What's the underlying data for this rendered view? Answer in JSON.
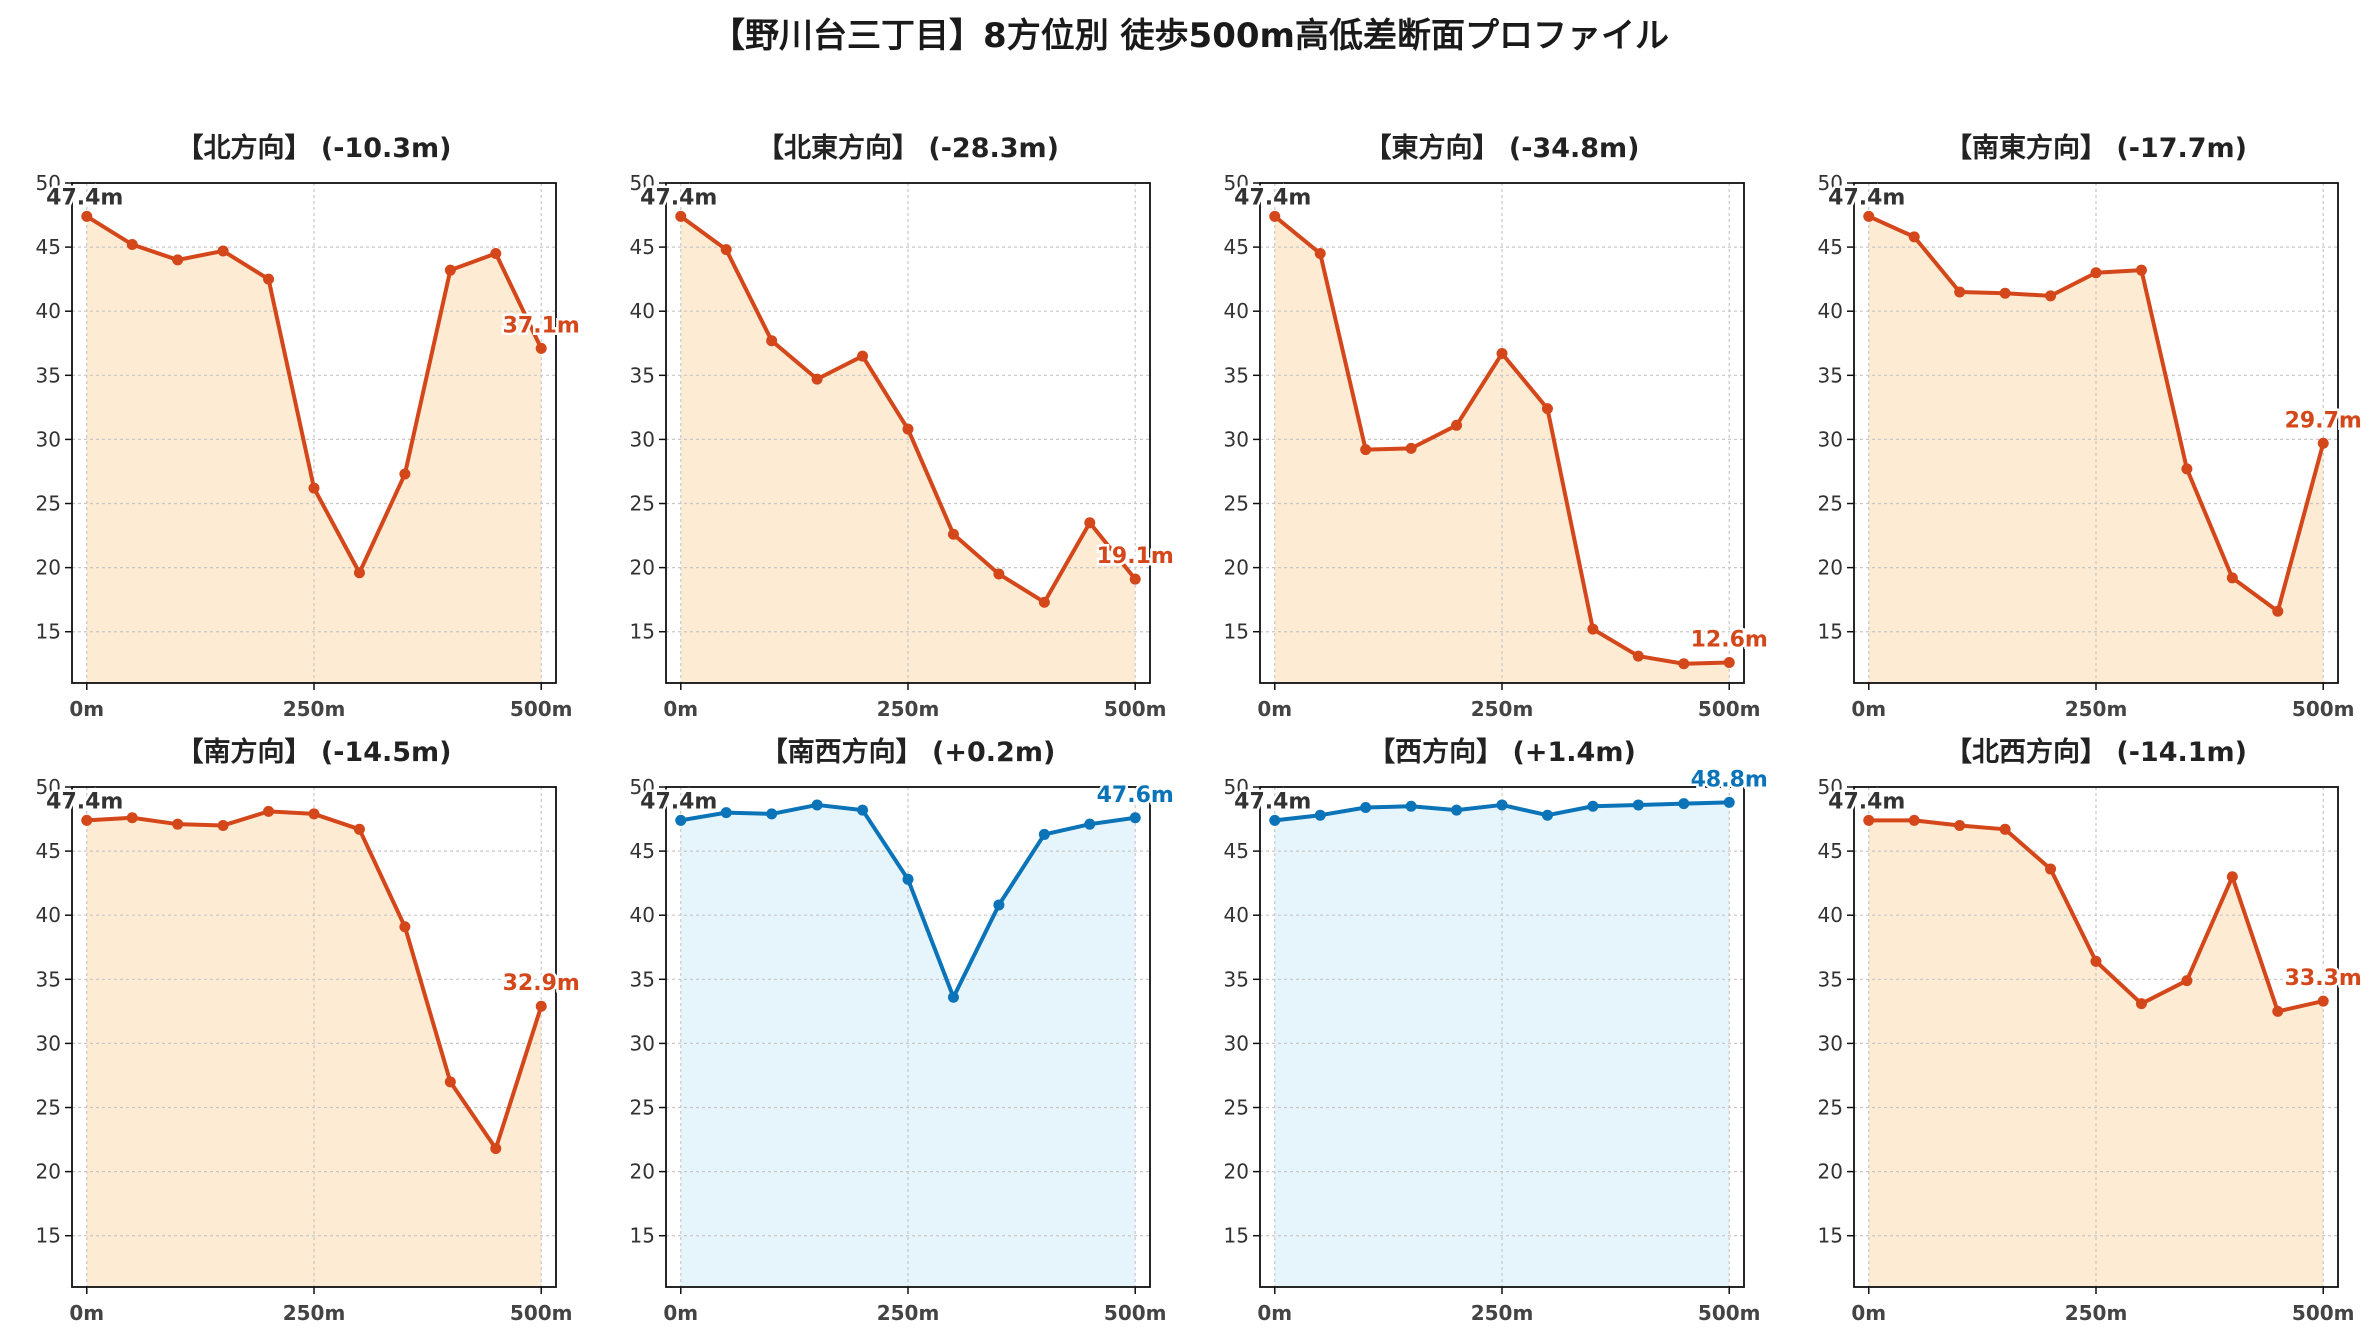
{
  "figure": {
    "title": "【野川台三丁目】8方位別 徒歩500m高低差断面プロファイル"
  },
  "colors": {
    "down_line": "#d4471a",
    "down_fill": "#fdebd3",
    "up_line": "#0b73b8",
    "up_fill": "#e6f4fb",
    "start_label": "#333333",
    "grid": "#c8c8c8"
  },
  "chart_data": [
    {
      "type": "line",
      "title": "【北方向】 (-10.3m)",
      "x": [
        0,
        50,
        100,
        150,
        200,
        250,
        300,
        350,
        400,
        450,
        500
      ],
      "x_ticks": [
        "0m",
        "250m",
        "500m"
      ],
      "y_ticks": [
        "15",
        "20",
        "25",
        "30",
        "35",
        "40",
        "45",
        "50"
      ],
      "ylim": [
        11,
        50
      ],
      "grid": true,
      "trend": "down",
      "values": [
        47.4,
        45.2,
        44.0,
        44.7,
        42.5,
        26.2,
        19.6,
        27.3,
        43.2,
        44.5,
        37.1
      ],
      "start_label": "47.4m",
      "end_label": "37.1m"
    },
    {
      "type": "line",
      "title": "【北東方向】 (-28.3m)",
      "x": [
        0,
        50,
        100,
        150,
        200,
        250,
        300,
        350,
        400,
        450,
        500
      ],
      "x_ticks": [
        "0m",
        "250m",
        "500m"
      ],
      "y_ticks": [
        "15",
        "20",
        "25",
        "30",
        "35",
        "40",
        "45",
        "50"
      ],
      "ylim": [
        11,
        50
      ],
      "grid": true,
      "trend": "down",
      "values": [
        47.4,
        44.8,
        37.7,
        34.7,
        36.5,
        30.8,
        22.6,
        19.5,
        17.3,
        23.5,
        19.1
      ],
      "start_label": "47.4m",
      "end_label": "19.1m"
    },
    {
      "type": "line",
      "title": "【東方向】 (-34.8m)",
      "x": [
        0,
        50,
        100,
        150,
        200,
        250,
        300,
        350,
        400,
        450,
        500
      ],
      "x_ticks": [
        "0m",
        "250m",
        "500m"
      ],
      "y_ticks": [
        "15",
        "20",
        "25",
        "30",
        "35",
        "40",
        "45",
        "50"
      ],
      "ylim": [
        11,
        50
      ],
      "grid": true,
      "trend": "down",
      "values": [
        47.4,
        44.5,
        29.2,
        29.3,
        31.1,
        36.7,
        32.4,
        15.2,
        13.1,
        12.5,
        12.6
      ],
      "start_label": "47.4m",
      "end_label": "12.6m"
    },
    {
      "type": "line",
      "title": "【南東方向】 (-17.7m)",
      "x": [
        0,
        50,
        100,
        150,
        200,
        250,
        300,
        350,
        400,
        450,
        500
      ],
      "x_ticks": [
        "0m",
        "250m",
        "500m"
      ],
      "y_ticks": [
        "15",
        "20",
        "25",
        "30",
        "35",
        "40",
        "45",
        "50"
      ],
      "ylim": [
        11,
        50
      ],
      "grid": true,
      "trend": "down",
      "values": [
        47.4,
        45.8,
        41.5,
        41.4,
        41.2,
        43.0,
        43.2,
        27.7,
        19.2,
        16.6,
        29.7
      ],
      "start_label": "47.4m",
      "end_label": "29.7m"
    },
    {
      "type": "line",
      "title": "【南方向】 (-14.5m)",
      "x": [
        0,
        50,
        100,
        150,
        200,
        250,
        300,
        350,
        400,
        450,
        500
      ],
      "x_ticks": [
        "0m",
        "250m",
        "500m"
      ],
      "y_ticks": [
        "15",
        "20",
        "25",
        "30",
        "35",
        "40",
        "45",
        "50"
      ],
      "ylim": [
        11,
        50
      ],
      "grid": true,
      "trend": "down",
      "values": [
        47.4,
        47.6,
        47.1,
        47.0,
        48.1,
        47.9,
        46.7,
        39.1,
        27.0,
        21.8,
        32.9
      ],
      "start_label": "47.4m",
      "end_label": "32.9m"
    },
    {
      "type": "line",
      "title": "【南西方向】 (+0.2m)",
      "x": [
        0,
        50,
        100,
        150,
        200,
        250,
        300,
        350,
        400,
        450,
        500
      ],
      "x_ticks": [
        "0m",
        "250m",
        "500m"
      ],
      "y_ticks": [
        "15",
        "20",
        "25",
        "30",
        "35",
        "40",
        "45",
        "50"
      ],
      "ylim": [
        11,
        50
      ],
      "grid": true,
      "trend": "up",
      "values": [
        47.4,
        48.0,
        47.9,
        48.6,
        48.2,
        42.8,
        33.6,
        40.8,
        46.3,
        47.1,
        47.6
      ],
      "start_label": "47.4m",
      "end_label": "47.6m"
    },
    {
      "type": "line",
      "title": "【西方向】 (+1.4m)",
      "x": [
        0,
        50,
        100,
        150,
        200,
        250,
        300,
        350,
        400,
        450,
        500
      ],
      "x_ticks": [
        "0m",
        "250m",
        "500m"
      ],
      "y_ticks": [
        "15",
        "20",
        "25",
        "30",
        "35",
        "40",
        "45",
        "50"
      ],
      "ylim": [
        11,
        50
      ],
      "grid": true,
      "trend": "up",
      "values": [
        47.4,
        47.8,
        48.4,
        48.5,
        48.2,
        48.6,
        47.8,
        48.5,
        48.6,
        48.7,
        48.8
      ],
      "start_label": "47.4m",
      "end_label": "48.8m"
    },
    {
      "type": "line",
      "title": "【北西方向】 (-14.1m)",
      "x": [
        0,
        50,
        100,
        150,
        200,
        250,
        300,
        350,
        400,
        450,
        500
      ],
      "x_ticks": [
        "0m",
        "250m",
        "500m"
      ],
      "y_ticks": [
        "15",
        "20",
        "25",
        "30",
        "35",
        "40",
        "45",
        "50"
      ],
      "ylim": [
        11,
        50
      ],
      "grid": true,
      "trend": "down",
      "values": [
        47.4,
        47.4,
        47.0,
        46.7,
        43.6,
        36.4,
        33.1,
        34.9,
        43.0,
        32.5,
        33.3
      ],
      "start_label": "47.4m",
      "end_label": "33.3m"
    }
  ]
}
